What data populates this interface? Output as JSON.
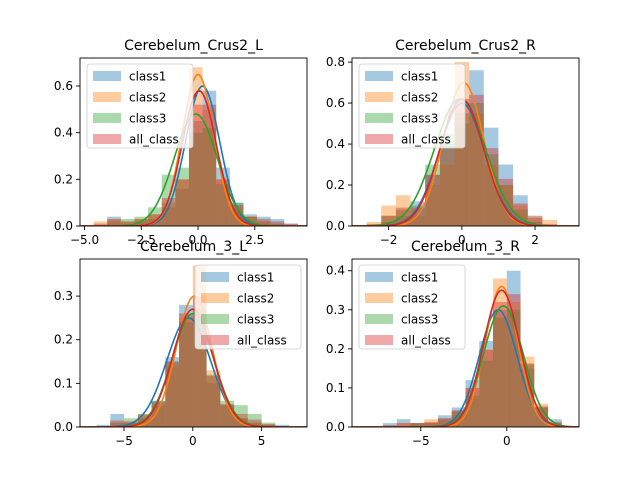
{
  "palette": [
    "#1f77b4",
    "#ff7f0e",
    "#2ca02c",
    "#d62728"
  ],
  "chart_data": [
    {
      "type": "area",
      "title": "Cerebelum_Crus2_L",
      "xlim": [
        -5.2,
        4.8
      ],
      "ylim": [
        0,
        0.72
      ],
      "xticks": [
        -5.0,
        -2.5,
        0.0,
        2.5
      ],
      "xtick_labels": [
        "−5.0",
        "−2.5",
        "0.0",
        "2.5"
      ],
      "yticks": [
        0,
        0.2,
        0.4,
        0.6
      ],
      "ytick_labels": [
        "0.0",
        "0.2",
        "0.4",
        "0.6"
      ],
      "legend": {
        "placement": "upper-left",
        "entries": [
          "class1",
          "class2",
          "class3",
          "all_class"
        ]
      },
      "hist": {
        "edges": [
          -4.6,
          -4.0,
          -3.4,
          -2.8,
          -2.2,
          -1.6,
          -1.0,
          -0.4,
          0.2,
          0.8,
          1.4,
          2.0,
          2.6,
          3.2,
          3.8,
          4.4
        ]
      },
      "series": [
        {
          "name": "class1",
          "bar_values": [
            0,
            0.04,
            0.01,
            0.02,
            0.03,
            0.08,
            0.16,
            0.45,
            0.58,
            0.25,
            0.1,
            0.05,
            0.04,
            0.03,
            0.01
          ],
          "kde_center": 0.2,
          "kde_sigma": 0.75,
          "kde_peak": 0.6
        },
        {
          "name": "class2",
          "bar_values": [
            0.02,
            0.03,
            0.02,
            0.03,
            0.05,
            0.1,
            0.2,
            0.68,
            0.5,
            0.2,
            0.08,
            0.04,
            0.02,
            0.01,
            0
          ],
          "kde_center": 0.0,
          "kde_sigma": 0.7,
          "kde_peak": 0.65
        },
        {
          "name": "class3",
          "bar_values": [
            0,
            0.02,
            0.03,
            0.04,
            0.08,
            0.22,
            0.25,
            0.4,
            0.42,
            0.18,
            0.1,
            0.04,
            0.02,
            0.01,
            0
          ],
          "kde_center": -0.1,
          "kde_sigma": 0.95,
          "kde_peak": 0.48
        },
        {
          "name": "all_class",
          "bar_values": [
            0.01,
            0.03,
            0.02,
            0.03,
            0.05,
            0.12,
            0.2,
            0.52,
            0.52,
            0.2,
            0.09,
            0.04,
            0.03,
            0.02,
            0.01
          ],
          "kde_center": 0.05,
          "kde_sigma": 0.75,
          "kde_peak": 0.58
        }
      ]
    },
    {
      "type": "area",
      "title": "Cerebelum_Crus2_R",
      "xlim": [
        -3.0,
        3.2
      ],
      "ylim": [
        0,
        0.82
      ],
      "xticks": [
        -2,
        0,
        2
      ],
      "xtick_labels": [
        "−2",
        "0",
        "2"
      ],
      "yticks": [
        0,
        0.2,
        0.4,
        0.6,
        0.8
      ],
      "ytick_labels": [
        "0.0",
        "0.2",
        "0.4",
        "0.6",
        "0.8"
      ],
      "legend": {
        "placement": "upper-left",
        "entries": [
          "class1",
          "class2",
          "class3",
          "all_class"
        ]
      },
      "hist": {
        "edges": [
          -2.6,
          -2.2,
          -1.8,
          -1.4,
          -1.0,
          -0.6,
          -0.2,
          0.2,
          0.6,
          1.0,
          1.4,
          1.8,
          2.2,
          2.6
        ]
      },
      "series": [
        {
          "name": "class1",
          "bar_values": [
            0,
            0.02,
            0.05,
            0.12,
            0.25,
            0.4,
            0.5,
            0.76,
            0.48,
            0.3,
            0.15,
            0.05,
            0
          ],
          "kde_center": 0.0,
          "kde_sigma": 0.62,
          "kde_peak": 0.6
        },
        {
          "name": "class2",
          "bar_values": [
            0.02,
            0.1,
            0.15,
            0.05,
            0.2,
            0.3,
            0.8,
            0.55,
            0.3,
            0.2,
            0.1,
            0.05,
            0.03
          ],
          "kde_center": 0.05,
          "kde_sigma": 0.55,
          "kde_peak": 0.7
        },
        {
          "name": "class3",
          "bar_values": [
            0,
            0.05,
            0.08,
            0.1,
            0.3,
            0.45,
            0.55,
            0.6,
            0.35,
            0.2,
            0.08,
            0.02,
            0
          ],
          "kde_center": -0.05,
          "kde_sigma": 0.7,
          "kde_peak": 0.62
        },
        {
          "name": "all_class",
          "bar_values": [
            0.01,
            0.05,
            0.09,
            0.09,
            0.25,
            0.38,
            0.62,
            0.64,
            0.38,
            0.23,
            0.11,
            0.04,
            0.01
          ],
          "kde_center": 0.0,
          "kde_sigma": 0.6,
          "kde_peak": 0.62
        }
      ]
    },
    {
      "type": "area",
      "title": "Cerebelum_3_L",
      "xlim": [
        -8.2,
        8.3
      ],
      "ylim": [
        0,
        0.385
      ],
      "xticks": [
        -5,
        0,
        5
      ],
      "xtick_labels": [
        "−5",
        "0",
        "5"
      ],
      "yticks": [
        0,
        0.1,
        0.2,
        0.3
      ],
      "ytick_labels": [
        "0.0",
        "0.1",
        "0.2",
        "0.3"
      ],
      "legend": {
        "placement": "upper-right",
        "entries": [
          "class1",
          "class2",
          "class3",
          "all_class"
        ]
      },
      "hist": {
        "edges": [
          -7.0,
          -6.0,
          -5.0,
          -4.0,
          -3.0,
          -2.0,
          -1.0,
          0.0,
          1.0,
          2.0,
          3.0,
          4.0,
          5.0,
          6.0,
          7.0
        ]
      },
      "series": [
        {
          "name": "class1",
          "bar_values": [
            0.005,
            0.03,
            0.01,
            0.02,
            0.06,
            0.16,
            0.28,
            0.26,
            0.1,
            0.05,
            0.02,
            0.01,
            0.005,
            0.005
          ],
          "kde_center": -0.3,
          "kde_sigma": 1.6,
          "kde_peak": 0.25
        },
        {
          "name": "class2",
          "bar_values": [
            0,
            0.01,
            0.01,
            0.03,
            0.05,
            0.14,
            0.25,
            0.37,
            0.13,
            0.05,
            0.02,
            0.01,
            0.005,
            0
          ],
          "kde_center": 0.1,
          "kde_sigma": 1.3,
          "kde_peak": 0.3
        },
        {
          "name": "class3",
          "bar_values": [
            0,
            0.01,
            0.02,
            0.03,
            0.06,
            0.15,
            0.24,
            0.27,
            0.12,
            0.06,
            0.05,
            0.03,
            0.01,
            0
          ],
          "kde_center": 0.0,
          "kde_sigma": 1.5,
          "kde_peak": 0.26
        },
        {
          "name": "all_class",
          "bar_values": [
            0.002,
            0.015,
            0.013,
            0.027,
            0.057,
            0.15,
            0.26,
            0.3,
            0.117,
            0.053,
            0.03,
            0.017,
            0.007,
            0.002
          ],
          "kde_center": 0.0,
          "kde_sigma": 1.45,
          "kde_peak": 0.27
        }
      ]
    },
    {
      "type": "area",
      "title": "Cerebelum_3_R",
      "xlim": [
        -9.0,
        4.2
      ],
      "ylim": [
        0,
        0.43
      ],
      "xticks": [
        -5,
        0
      ],
      "xtick_labels": [
        "−5",
        "0"
      ],
      "yticks": [
        0,
        0.1,
        0.2,
        0.3,
        0.4
      ],
      "ytick_labels": [
        "0.0",
        "0.1",
        "0.2",
        "0.3",
        "0.4"
      ],
      "legend": {
        "placement": "upper-left",
        "entries": [
          "class1",
          "class2",
          "class3",
          "all_class"
        ]
      },
      "hist": {
        "edges": [
          -8.0,
          -7.2,
          -6.4,
          -5.6,
          -4.8,
          -4.0,
          -3.2,
          -2.4,
          -1.6,
          -0.8,
          0.0,
          0.8,
          1.6,
          2.4,
          3.2
        ]
      },
      "series": [
        {
          "name": "class1",
          "bar_values": [
            0,
            0.01,
            0.02,
            0.01,
            0.01,
            0.03,
            0.05,
            0.12,
            0.22,
            0.3,
            0.4,
            0.15,
            0.05,
            0.02
          ],
          "kde_center": -0.5,
          "kde_sigma": 1.1,
          "kde_peak": 0.3
        },
        {
          "name": "class2",
          "bar_values": [
            0,
            0,
            0.01,
            0.01,
            0.02,
            0.02,
            0.04,
            0.1,
            0.2,
            0.38,
            0.32,
            0.18,
            0.06,
            0.01
          ],
          "kde_center": -0.3,
          "kde_sigma": 0.95,
          "kde_peak": 0.36
        },
        {
          "name": "class3",
          "bar_values": [
            0,
            0,
            0,
            0.01,
            0.01,
            0.02,
            0.04,
            0.08,
            0.17,
            0.28,
            0.3,
            0.16,
            0.05,
            0.01
          ],
          "kde_center": -0.2,
          "kde_sigma": 1.15,
          "kde_peak": 0.31
        },
        {
          "name": "all_class",
          "bar_values": [
            0,
            0.005,
            0.01,
            0.01,
            0.013,
            0.023,
            0.043,
            0.1,
            0.197,
            0.32,
            0.34,
            0.163,
            0.053,
            0.013
          ],
          "kde_center": -0.3,
          "kde_sigma": 1.05,
          "kde_peak": 0.35
        }
      ]
    }
  ]
}
